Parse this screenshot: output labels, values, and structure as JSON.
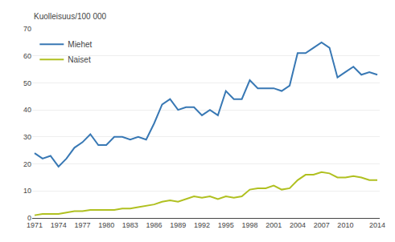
{
  "chart_data": {
    "type": "line",
    "ylabel": "Kuolleisuus/100 000",
    "x": [
      1971,
      1972,
      1973,
      1974,
      1975,
      1976,
      1977,
      1978,
      1979,
      1980,
      1981,
      1982,
      1983,
      1984,
      1985,
      1986,
      1987,
      1988,
      1989,
      1990,
      1991,
      1992,
      1993,
      1994,
      1995,
      1996,
      1997,
      1998,
      1999,
      2000,
      2001,
      2002,
      2003,
      2004,
      2005,
      2006,
      2007,
      2008,
      2009,
      2010,
      2011,
      2012,
      2013,
      2014
    ],
    "series": [
      {
        "name": "Miehet",
        "color": "#3878b4",
        "values": [
          24,
          22,
          23,
          19,
          22,
          26,
          28,
          31,
          27,
          27,
          30,
          30,
          29,
          30,
          29,
          35,
          42,
          44,
          40,
          41,
          41,
          38,
          40,
          38,
          47,
          44,
          44,
          51,
          48,
          48,
          48,
          47,
          49,
          61,
          61,
          63,
          65,
          63,
          52,
          54,
          56,
          53,
          54,
          53
        ]
      },
      {
        "name": "Naiset",
        "color": "#b0c020",
        "values": [
          1,
          1.5,
          1.5,
          1.5,
          2,
          2.5,
          2.5,
          3,
          3,
          3,
          3,
          3.5,
          3.5,
          4,
          4.5,
          5,
          6,
          6.5,
          6,
          7,
          8,
          7.5,
          8,
          7,
          8,
          7.5,
          8,
          10.5,
          11,
          11,
          12,
          10.5,
          11,
          14,
          16,
          16,
          17,
          16.5,
          15,
          15,
          15.5,
          15,
          14,
          14
        ]
      }
    ],
    "xlim": [
      1970.7,
      2014.3
    ],
    "xticks": [
      1971,
      1974,
      1977,
      1980,
      1983,
      1986,
      1989,
      1992,
      1995,
      1998,
      2001,
      2004,
      2007,
      2010,
      2014
    ],
    "ylim": [
      0,
      70
    ],
    "yticks": [
      0,
      10,
      20,
      30,
      40,
      50,
      60,
      70
    ],
    "grid": true,
    "legend": "upper left"
  }
}
